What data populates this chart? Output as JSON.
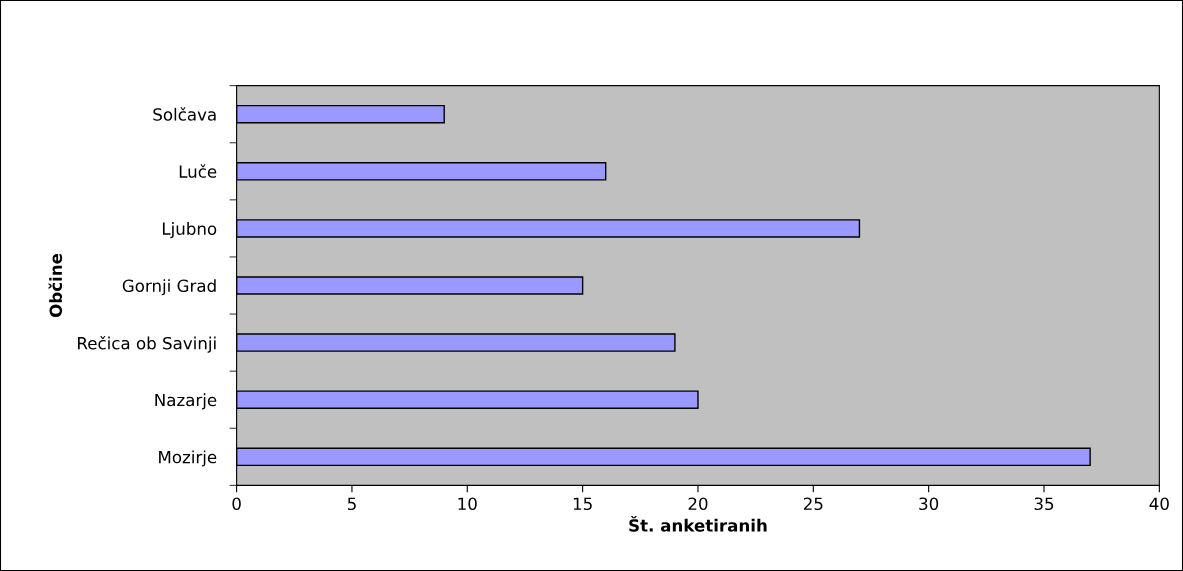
{
  "chart_data": {
    "type": "bar",
    "orientation": "horizontal",
    "xlabel": "Št. anketiranih",
    "ylabel": "Občine",
    "categories": [
      "Solčava",
      "Luče",
      "Ljubno",
      "Gornji Grad",
      "Rečica ob Savinji",
      "Nazarje",
      "Mozirje"
    ],
    "values": [
      9,
      16,
      27,
      15,
      19,
      20,
      37
    ],
    "color": "#9999ff",
    "xlim": [
      0,
      40
    ],
    "xticks": [
      0,
      5,
      10,
      15,
      20,
      25,
      30,
      35,
      40
    ],
    "grid": false,
    "legend": false
  }
}
